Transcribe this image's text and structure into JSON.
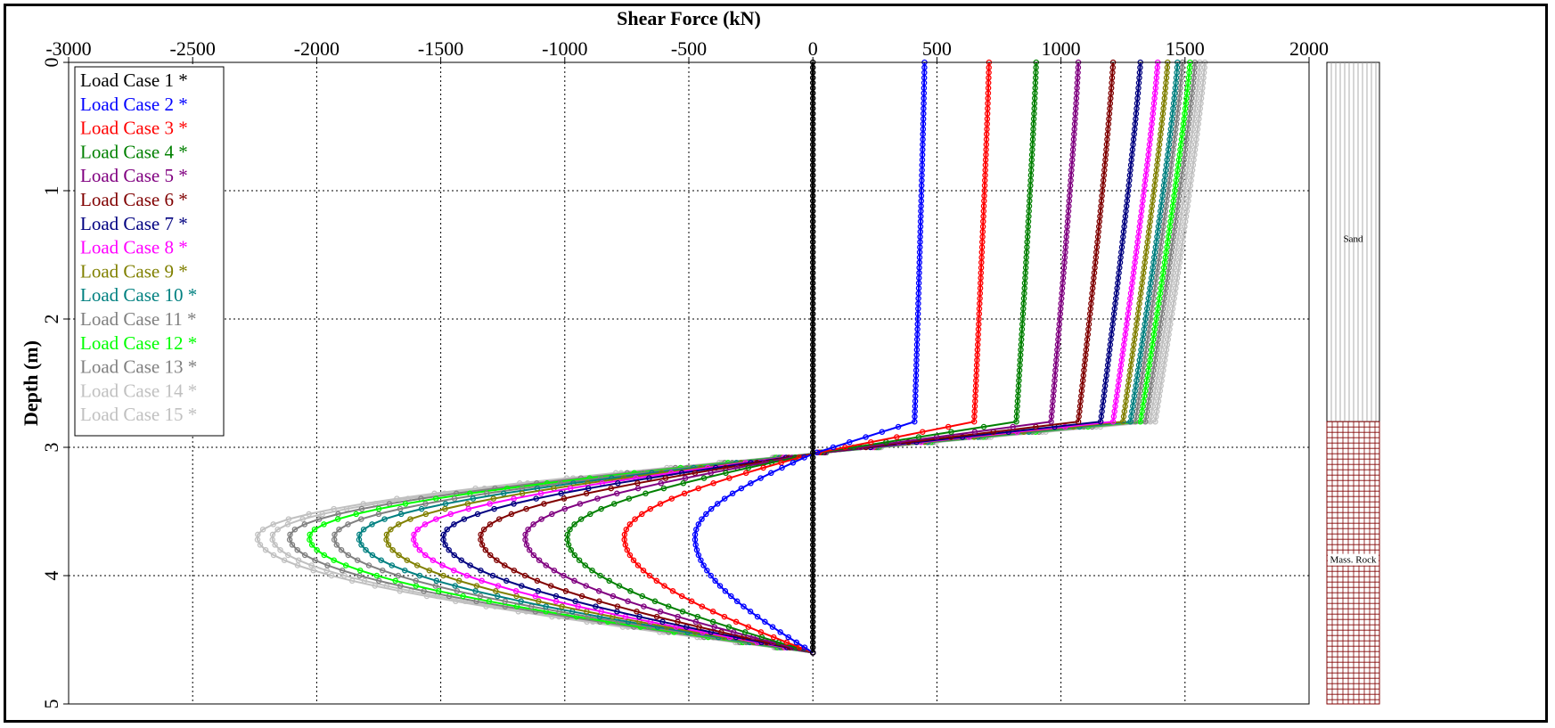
{
  "chart_data": {
    "type": "line",
    "title": "Shear Force (kN)",
    "xlabel": "Shear Force (kN)",
    "ylabel": "Depth (m)",
    "xlim": [
      -3000,
      2000
    ],
    "ylim": [
      0,
      5
    ],
    "y_inverted": true,
    "x_ticks": [
      "-3000",
      "-2500",
      "-2000",
      "-1500",
      "-1000",
      "-500",
      "0",
      "500",
      "1000",
      "1500",
      "2000"
    ],
    "y_ticks": [
      "0",
      "1",
      "2",
      "3",
      "4",
      "5"
    ],
    "grid": true,
    "legend_position": "top-left",
    "layer_boundary_depth": 2.8,
    "pile_tip_depth": 4.6,
    "zero_crossing_depth": 3.05,
    "min_depth": 3.7,
    "series": [
      {
        "name": "Load Case 1 *",
        "color": "#000000",
        "top": 0,
        "at_boundary": 0,
        "minimum": 0
      },
      {
        "name": "Load Case 2 *",
        "color": "#0000ff",
        "top": 450,
        "at_boundary": 410,
        "minimum": -475
      },
      {
        "name": "Load Case 3 *",
        "color": "#ff0000",
        "top": 710,
        "at_boundary": 650,
        "minimum": -760
      },
      {
        "name": "Load Case 4 *",
        "color": "#008000",
        "top": 900,
        "at_boundary": 820,
        "minimum": -990
      },
      {
        "name": "Load Case 5 *",
        "color": "#800080",
        "top": 1070,
        "at_boundary": 960,
        "minimum": -1160
      },
      {
        "name": "Load Case 6 *",
        "color": "#800000",
        "top": 1210,
        "at_boundary": 1070,
        "minimum": -1340
      },
      {
        "name": "Load Case 7 *",
        "color": "#000080",
        "top": 1320,
        "at_boundary": 1160,
        "minimum": -1490
      },
      {
        "name": "Load Case 8 *",
        "color": "#ff00ff",
        "top": 1390,
        "at_boundary": 1210,
        "minimum": -1610
      },
      {
        "name": "Load Case 9 *",
        "color": "#808000",
        "top": 1430,
        "at_boundary": 1250,
        "minimum": -1720
      },
      {
        "name": "Load Case 10 *",
        "color": "#008080",
        "top": 1470,
        "at_boundary": 1280,
        "minimum": -1830
      },
      {
        "name": "Load Case 11 *",
        "color": "#808080",
        "top": 1490,
        "at_boundary": 1300,
        "minimum": -1930
      },
      {
        "name": "Load Case 12 *",
        "color": "#00ff00",
        "top": 1520,
        "at_boundary": 1320,
        "minimum": -2030
      },
      {
        "name": "Load Case 13 *",
        "color": "#808080",
        "top": 1540,
        "at_boundary": 1340,
        "minimum": -2110
      },
      {
        "name": "Load Case 14 *",
        "color": "#c0c0c0",
        "top": 1560,
        "at_boundary": 1360,
        "minimum": -2180
      },
      {
        "name": "Load Case 15 *",
        "color": "#c0c0c0",
        "top": 1580,
        "at_boundary": 1380,
        "minimum": -2240
      }
    ],
    "soil_layers": [
      {
        "name": "Sand",
        "top": 0,
        "bottom": 2.8
      },
      {
        "name": "Mass. Rock",
        "top": 2.8,
        "bottom": 5
      }
    ]
  }
}
